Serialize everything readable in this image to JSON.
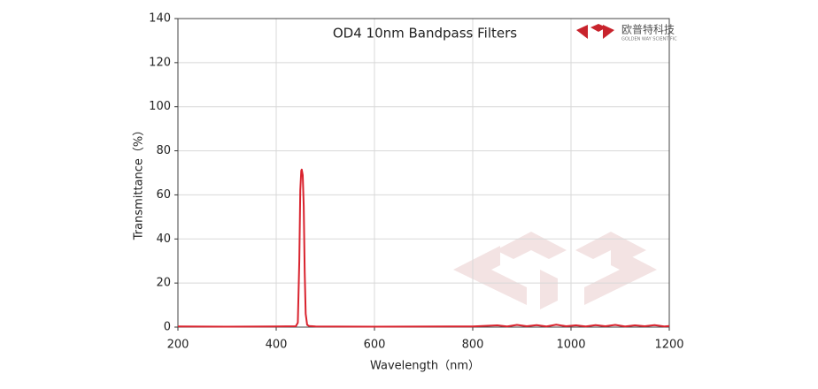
{
  "chart_data": {
    "type": "line",
    "title": "OD4 10nm Bandpass Filters",
    "logo_text": "欧普特科技",
    "logo_subtext": "GOLDEN WAY SCIENTIFIC",
    "x_label": "Wavelength（nm）",
    "y_label": "Transmittance（%）",
    "x": [
      200,
      300,
      400,
      440,
      444,
      447,
      449,
      451,
      452,
      454,
      456,
      458,
      460,
      463,
      467,
      480,
      600,
      800,
      850,
      870,
      890,
      910,
      930,
      950,
      970,
      990,
      1010,
      1030,
      1050,
      1070,
      1090,
      1110,
      1130,
      1150,
      1170,
      1190,
      1200
    ],
    "values": [
      0.3,
      0.2,
      0.3,
      0.4,
      2,
      30,
      62,
      71,
      71.5,
      69,
      55,
      25,
      6,
      1,
      0.5,
      0.3,
      0.2,
      0.3,
      0.8,
      0.3,
      1.0,
      0.4,
      0.9,
      0.3,
      1.1,
      0.4,
      0.8,
      0.3,
      0.9,
      0.4,
      1.0,
      0.3,
      0.8,
      0.4,
      0.9,
      0.3,
      0.5
    ],
    "color": "#d9232e",
    "xlim": [
      200,
      1200
    ],
    "xticks": [
      200,
      400,
      600,
      800,
      1000,
      1200
    ],
    "ylim": [
      0,
      140
    ],
    "yticks": [
      0,
      20,
      40,
      60,
      80,
      100,
      120,
      140
    ],
    "grid": true
  }
}
